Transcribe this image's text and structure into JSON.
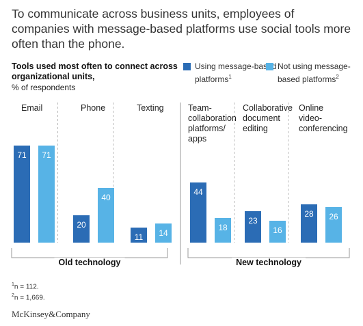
{
  "title": "To communicate across business units, employees of companies with message-based platforms use social tools more often than the phone.",
  "subtitle_bold": "Tools used most often to connect across organizational units,",
  "subtitle_unit": "% of respondents",
  "legend": [
    {
      "name": "Using message-based platforms",
      "sup": "1",
      "color": "#2b6cb5"
    },
    {
      "name": "Not using message-based platforms",
      "sup": "2",
      "color": "#57b3e6"
    }
  ],
  "footnotes": [
    {
      "sup": "1",
      "text": "n = 112."
    },
    {
      "sup": "2",
      "text": "n = 1,669."
    }
  ],
  "brand": "McKinsey&Company",
  "chart_data": {
    "type": "bar",
    "categories": [
      {
        "label": [
          "Email"
        ]
      },
      {
        "label": [
          "Phone"
        ]
      },
      {
        "label": [
          "Texting"
        ]
      },
      {
        "label": [
          "Team-",
          "collaboration",
          "platforms/",
          "apps"
        ]
      },
      {
        "label": [
          "Collaborative",
          "document",
          "editing"
        ]
      },
      {
        "label": [
          "Online",
          "video-",
          "conferencing"
        ]
      }
    ],
    "series": [
      {
        "name": "Using message-based platforms",
        "values": [
          71,
          20,
          11,
          44,
          23,
          28
        ]
      },
      {
        "name": "Not using message-based platforms",
        "values": [
          71,
          40,
          14,
          18,
          16,
          26
        ]
      }
    ],
    "groups": [
      {
        "label": "Old technology",
        "categories": [
          0,
          1,
          2
        ]
      },
      {
        "label": "New technology",
        "categories": [
          3,
          4,
          5
        ]
      }
    ],
    "ylim": [
      0,
      100
    ],
    "xlabel": "",
    "ylabel": ""
  }
}
